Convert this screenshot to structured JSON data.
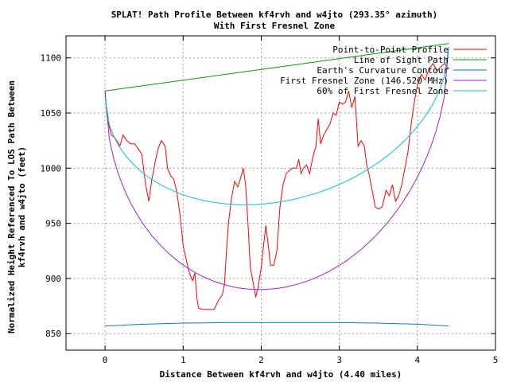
{
  "chart_data": {
    "type": "line",
    "title": "SPLAT! Path Profile Between kf4rvh and w4jto (293.35° azimuth)",
    "subtitle": "With First Fresnel Zone",
    "xlabel": "Distance Between kf4rvh and w4jto (4.40 miles)",
    "ylabel": "Normalized Height Referenced To LOS Path Between",
    "ylabel2": "kf4rvh and w4jto (feet)",
    "xlim": [
      -0.5,
      5
    ],
    "ylim": [
      835,
      1120
    ],
    "x_ticks": [
      0,
      1,
      2,
      3,
      4,
      5
    ],
    "y_ticks": [
      850,
      900,
      950,
      1000,
      1050,
      1100
    ],
    "grid": true,
    "legend_position": "top-right",
    "series": [
      {
        "name": "Point-to-Point Profile",
        "color": "#ff0000",
        "points": [
          [
            0.0,
            1068
          ],
          [
            0.03,
            1045
          ],
          [
            0.08,
            1030
          ],
          [
            0.12,
            1028
          ],
          [
            0.15,
            1025
          ],
          [
            0.19,
            1020
          ],
          [
            0.23,
            1030
          ],
          [
            0.28,
            1025
          ],
          [
            0.33,
            1022
          ],
          [
            0.38,
            1022
          ],
          [
            0.43,
            1017
          ],
          [
            0.47,
            1013
          ],
          [
            0.52,
            985
          ],
          [
            0.56,
            970
          ],
          [
            0.6,
            990
          ],
          [
            0.64,
            1005
          ],
          [
            0.68,
            1018
          ],
          [
            0.72,
            1025
          ],
          [
            0.77,
            1020
          ],
          [
            0.8,
            1000
          ],
          [
            0.84,
            993
          ],
          [
            0.88,
            990
          ],
          [
            0.92,
            978
          ],
          [
            0.96,
            958
          ],
          [
            1.0,
            930
          ],
          [
            1.04,
            917
          ],
          [
            1.08,
            905
          ],
          [
            1.12,
            898
          ],
          [
            1.15,
            905
          ],
          [
            1.18,
            880
          ],
          [
            1.2,
            873
          ],
          [
            1.25,
            872
          ],
          [
            1.35,
            872
          ],
          [
            1.4,
            872
          ],
          [
            1.45,
            880
          ],
          [
            1.5,
            885
          ],
          [
            1.53,
            895
          ],
          [
            1.55,
            920
          ],
          [
            1.58,
            950
          ],
          [
            1.62,
            973
          ],
          [
            1.66,
            988
          ],
          [
            1.7,
            983
          ],
          [
            1.74,
            992
          ],
          [
            1.77,
            1000
          ],
          [
            1.8,
            985
          ],
          [
            1.83,
            950
          ],
          [
            1.86,
            910
          ],
          [
            1.9,
            895
          ],
          [
            1.93,
            883
          ],
          [
            1.96,
            892
          ],
          [
            2.0,
            910
          ],
          [
            2.03,
            930
          ],
          [
            2.06,
            948
          ],
          [
            2.09,
            930
          ],
          [
            2.12,
            912
          ],
          [
            2.16,
            912
          ],
          [
            2.2,
            925
          ],
          [
            2.24,
            965
          ],
          [
            2.28,
            985
          ],
          [
            2.32,
            995
          ],
          [
            2.36,
            998
          ],
          [
            2.4,
            1000
          ],
          [
            2.45,
            1000
          ],
          [
            2.48,
            1008
          ],
          [
            2.51,
            995
          ],
          [
            2.54,
            1000
          ],
          [
            2.58,
            1003
          ],
          [
            2.62,
            995
          ],
          [
            2.66,
            1010
          ],
          [
            2.7,
            1020
          ],
          [
            2.73,
            1045
          ],
          [
            2.76,
            1022
          ],
          [
            2.8,
            1030
          ],
          [
            2.84,
            1035
          ],
          [
            2.88,
            1040
          ],
          [
            2.92,
            1050
          ],
          [
            2.96,
            1048
          ],
          [
            3.0,
            1060
          ],
          [
            3.04,
            1058
          ],
          [
            3.08,
            1060
          ],
          [
            3.12,
            1070
          ],
          [
            3.16,
            1055
          ],
          [
            3.2,
            1065
          ],
          [
            3.24,
            1020
          ],
          [
            3.28,
            1025
          ],
          [
            3.32,
            1020
          ],
          [
            3.35,
            1003
          ],
          [
            3.38,
            995
          ],
          [
            3.42,
            980
          ],
          [
            3.46,
            965
          ],
          [
            3.5,
            963
          ],
          [
            3.55,
            965
          ],
          [
            3.6,
            980
          ],
          [
            3.64,
            975
          ],
          [
            3.68,
            985
          ],
          [
            3.72,
            970
          ],
          [
            3.76,
            975
          ],
          [
            3.8,
            985
          ],
          [
            3.84,
            1000
          ],
          [
            3.88,
            1015
          ],
          [
            3.92,
            1040
          ],
          [
            3.96,
            1060
          ],
          [
            4.0,
            1075
          ],
          [
            4.05,
            1085
          ],
          [
            4.1,
            1080
          ],
          [
            4.15,
            1090
          ],
          [
            4.2,
            1095
          ],
          [
            4.25,
            1088
          ],
          [
            4.3,
            1092
          ],
          [
            4.35,
            1095
          ],
          [
            4.4,
            1090
          ]
        ]
      },
      {
        "name": "Line of Sight Path",
        "color": "#00a000",
        "points": [
          [
            0.0,
            1070
          ],
          [
            4.4,
            1113
          ]
        ]
      },
      {
        "name": "Earth's Curvature Contour",
        "color": "#0080c0",
        "points": [
          [
            0.0,
            857
          ],
          [
            0.5,
            858.5
          ],
          [
            1.0,
            859.5
          ],
          [
            1.5,
            860
          ],
          [
            2.2,
            860
          ],
          [
            3.0,
            860
          ],
          [
            3.5,
            859.5
          ],
          [
            4.0,
            858.5
          ],
          [
            4.4,
            857
          ]
        ]
      },
      {
        "name": "First Fresnel Zone (146.520 MHz)",
        "color": "#a020d0",
        "formula": "ellipse",
        "center_dip": 891,
        "points_endpoints": [
          [
            0.0,
            1070
          ],
          [
            4.4,
            1110
          ]
        ]
      },
      {
        "name": "60% of First Fresnel Zone",
        "color": "#00c8c8",
        "formula": "ellipse",
        "center_dip": 969,
        "points_endpoints": [
          [
            0.0,
            1065
          ],
          [
            4.4,
            1110
          ]
        ]
      }
    ]
  }
}
